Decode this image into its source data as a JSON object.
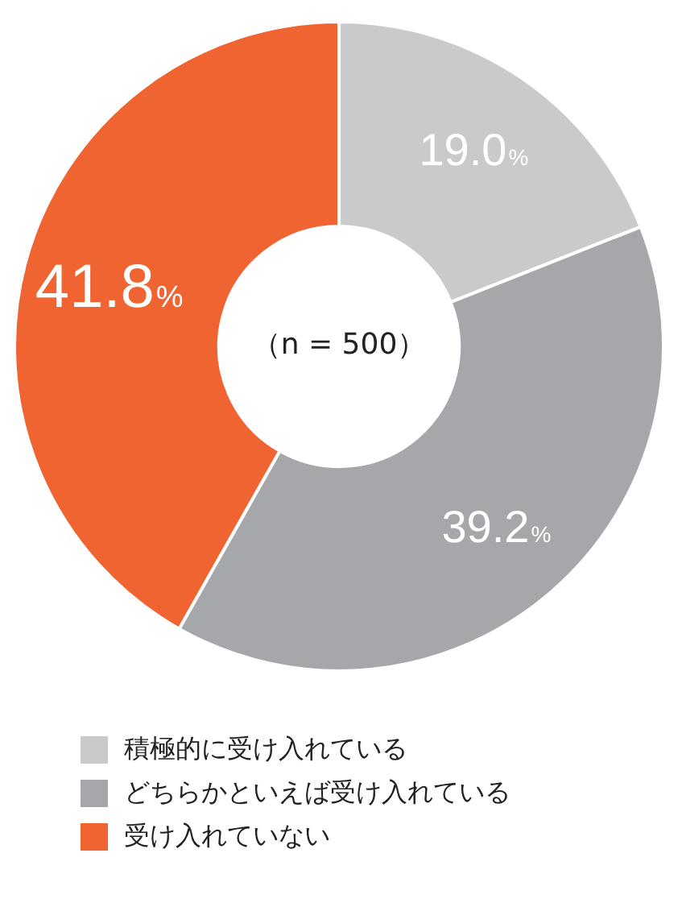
{
  "chart_data": {
    "type": "donut",
    "categories": [
      "積極的に受け入れている",
      "どちらかといえば受け入れている",
      "受け入れていない"
    ],
    "values": [
      19.0,
      39.2,
      41.8
    ],
    "colors": [
      "#c9cacc",
      "#a6a7aa",
      "#ef6431"
    ],
    "value_labels": [
      "19.0%",
      "39.2%",
      "41.8%"
    ],
    "annotations": [
      "（n = 500）"
    ],
    "legend": "bottom"
  }
}
